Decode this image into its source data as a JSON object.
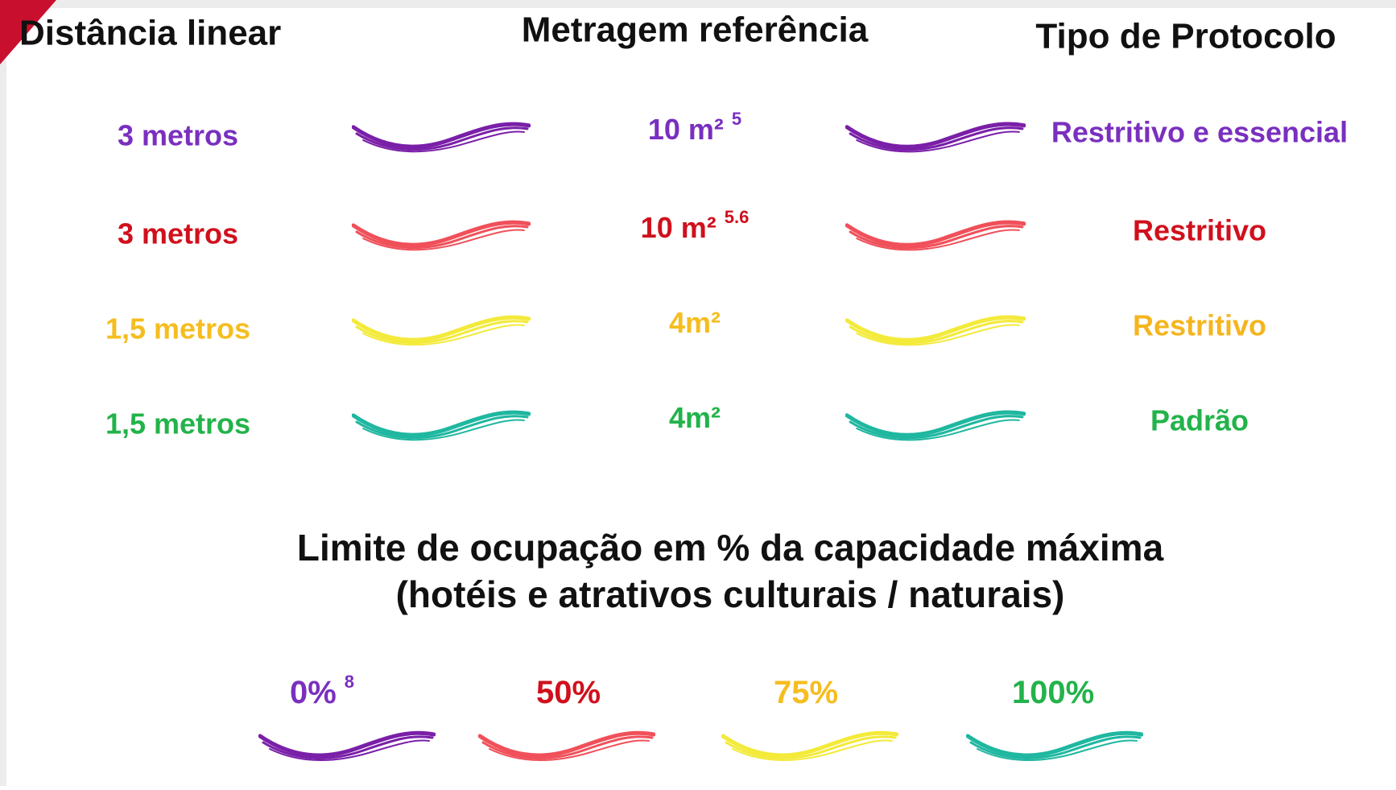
{
  "headers": [
    "Distância linear",
    "Metragem referência",
    "Tipo de Protocolo"
  ],
  "rows": [
    {
      "distance": "3 metros",
      "area": {
        "text": "10 m²",
        "note": "5"
      },
      "protocol": "Restritivo e essencial"
    },
    {
      "distance": "3 metros",
      "area": {
        "text": "10 m²",
        "note": "5.6"
      },
      "protocol": "Restritivo"
    },
    {
      "distance": "1,5 metros",
      "area": {
        "text": "4m²"
      },
      "protocol": "Restritivo"
    },
    {
      "distance": "1,5 metros",
      "area": {
        "text": "4m²"
      },
      "protocol": "Padrão"
    }
  ],
  "occupancy": {
    "title": [
      "Limite de ocupação em % da capacidade máxima",
      "(hotéis e atrativos culturais / naturais)"
    ],
    "levels": [
      {
        "text": "0%",
        "note": "8"
      },
      {
        "text": "50%"
      },
      {
        "text": "75%"
      },
      {
        "text": "100%"
      }
    ]
  }
}
